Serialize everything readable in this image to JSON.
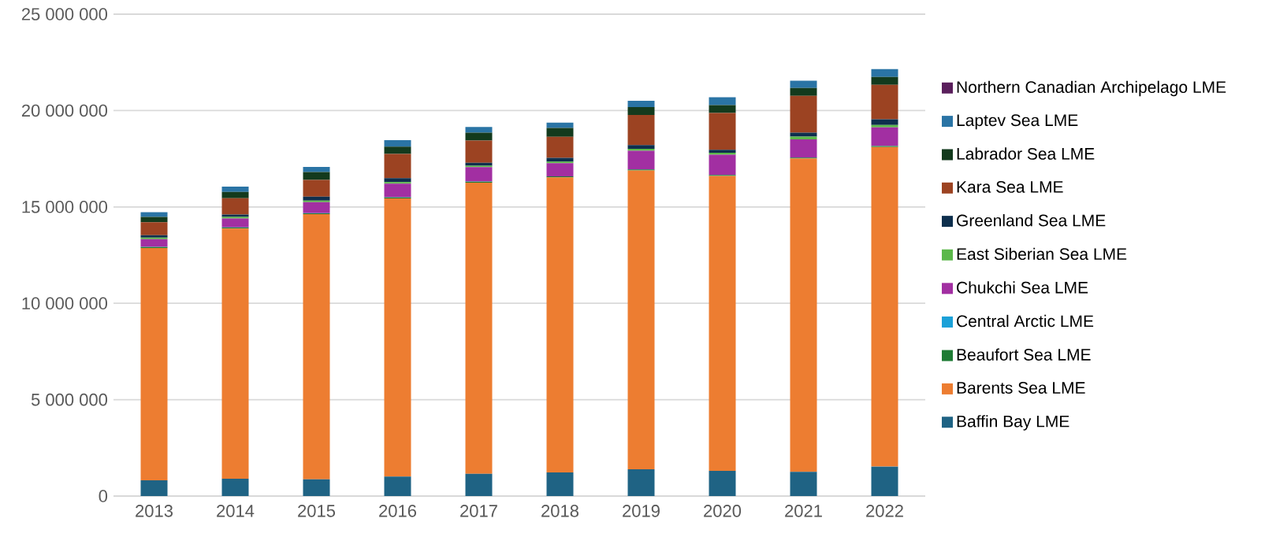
{
  "chart_data": {
    "type": "bar",
    "stacked": true,
    "categories": [
      "2013",
      "2014",
      "2015",
      "2016",
      "2017",
      "2018",
      "2019",
      "2020",
      "2021",
      "2022"
    ],
    "ylim": [
      0,
      25000000
    ],
    "yticks": [
      {
        "value": 0,
        "label": "0"
      },
      {
        "value": 5000000,
        "label": "5 000 000"
      },
      {
        "value": 10000000,
        "label": "10 000 000"
      },
      {
        "value": 15000000,
        "label": "15 000 000"
      },
      {
        "value": 20000000,
        "label": "20 000 000"
      },
      {
        "value": 25000000,
        "label": "25 000 000"
      }
    ],
    "grid": "y",
    "legend": "right",
    "series": [
      {
        "name": "Baffin Bay LME",
        "color": "#1f6384",
        "values": [
          820000,
          900000,
          870000,
          1010000,
          1150000,
          1230000,
          1390000,
          1310000,
          1260000,
          1530000
        ]
      },
      {
        "name": "Barents Sea LME",
        "color": "#ed7d31",
        "values": [
          12050000,
          12980000,
          13750000,
          14430000,
          15110000,
          15300000,
          15500000,
          15300000,
          16250000,
          16580000
        ]
      },
      {
        "name": "Beaufort Sea LME",
        "color": "#1e7b34",
        "values": [
          50000,
          50000,
          50000,
          50000,
          50000,
          50000,
          50000,
          50000,
          50000,
          50000
        ]
      },
      {
        "name": "Central Arctic LME",
        "color": "#1ba1d8",
        "values": [
          10000,
          10000,
          10000,
          10000,
          10000,
          10000,
          10000,
          10000,
          10000,
          10000
        ]
      },
      {
        "name": "Chukchi Sea LME",
        "color": "#a22fa2",
        "values": [
          400000,
          460000,
          570000,
          710000,
          740000,
          680000,
          960000,
          1040000,
          930000,
          960000
        ]
      },
      {
        "name": "East Siberian Sea LME",
        "color": "#5bb84a",
        "values": [
          80000,
          80000,
          80000,
          80000,
          80000,
          80000,
          100000,
          100000,
          150000,
          120000
        ]
      },
      {
        "name": "Greenland Sea LME",
        "color": "#0e2f4d",
        "values": [
          120000,
          120000,
          200000,
          200000,
          150000,
          200000,
          200000,
          150000,
          200000,
          300000
        ]
      },
      {
        "name": "Kara Sea LME",
        "color": "#9c4322",
        "values": [
          680000,
          850000,
          870000,
          1260000,
          1150000,
          1090000,
          1560000,
          1910000,
          1910000,
          1780000
        ]
      },
      {
        "name": "Labrador Sea LME",
        "color": "#133a1d",
        "values": [
          270000,
          330000,
          410000,
          380000,
          410000,
          460000,
          410000,
          410000,
          410000,
          410000
        ]
      },
      {
        "name": "Laptev Sea LME",
        "color": "#2a74a5",
        "values": [
          250000,
          270000,
          270000,
          330000,
          300000,
          270000,
          330000,
          410000,
          380000,
          410000
        ]
      },
      {
        "name": "Northern Canadian Archipelago LME",
        "color": "#5a1f5c",
        "values": [
          null,
          null,
          null,
          null,
          null,
          null,
          null,
          null,
          null,
          null
        ]
      }
    ]
  }
}
